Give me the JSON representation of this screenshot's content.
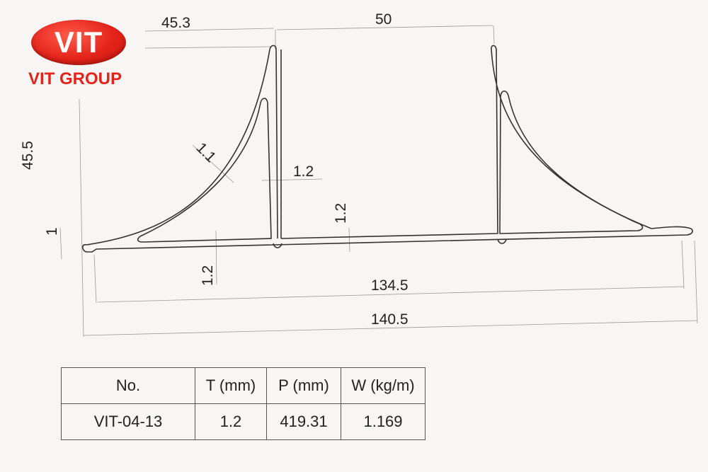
{
  "logo": {
    "badge_text": "VIT",
    "company_name": "VIT GROUP",
    "color": "#e3241b"
  },
  "dimensions": {
    "top_left_width": "45.3",
    "top_span": "50",
    "height": "45.5",
    "fin_thickness": "1.1",
    "web_thickness": "1.2",
    "base_thickness_right": "1.2",
    "base_thickness_bottom": "1.2",
    "lip_height": "1",
    "inner_width": "134.5",
    "overall_width": "140.5"
  },
  "spec_table": {
    "headers": [
      "No.",
      "T (mm)",
      "P (mm)",
      "W (kg/m)"
    ],
    "row": [
      "VIT-04-13",
      "1.2",
      "419.31",
      "1.169"
    ]
  }
}
